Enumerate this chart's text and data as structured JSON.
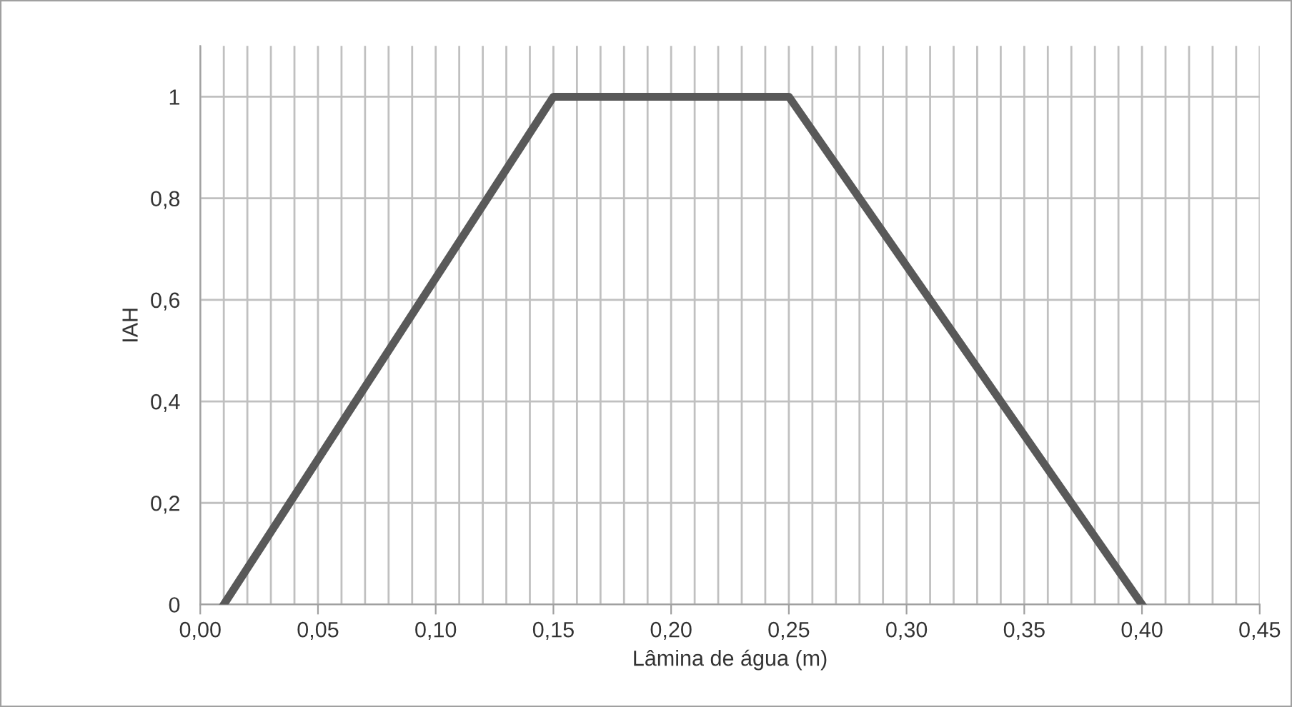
{
  "chart_data": {
    "type": "line",
    "xlabel": "Lâmina de água (m)",
    "ylabel": "IAH",
    "x": [
      0.01,
      0.15,
      0.25,
      0.4
    ],
    "series": [
      {
        "color": "#595959",
        "values": [
          0,
          1,
          1,
          0
        ]
      }
    ],
    "xlim": [
      0,
      0.45
    ],
    "ylim": [
      0,
      1.1
    ],
    "xticks": [
      {
        "value": 0,
        "label": "0,00"
      },
      {
        "value": 0.01,
        "label": null
      },
      {
        "value": 0.02,
        "label": null
      },
      {
        "value": 0.03,
        "label": null
      },
      {
        "value": 0.04,
        "label": null
      },
      {
        "value": 0.05,
        "label": "0,05"
      },
      {
        "value": 0.06,
        "label": null
      },
      {
        "value": 0.07,
        "label": null
      },
      {
        "value": 0.08,
        "label": null
      },
      {
        "value": 0.09,
        "label": null
      },
      {
        "value": 0.1,
        "label": "0,10"
      },
      {
        "value": 0.11,
        "label": null
      },
      {
        "value": 0.12,
        "label": null
      },
      {
        "value": 0.13,
        "label": null
      },
      {
        "value": 0.14,
        "label": null
      },
      {
        "value": 0.15,
        "label": "0,15"
      },
      {
        "value": 0.16,
        "label": null
      },
      {
        "value": 0.17,
        "label": null
      },
      {
        "value": 0.18,
        "label": null
      },
      {
        "value": 0.19,
        "label": null
      },
      {
        "value": 0.2,
        "label": "0,20"
      },
      {
        "value": 0.21,
        "label": null
      },
      {
        "value": 0.22,
        "label": null
      },
      {
        "value": 0.23,
        "label": null
      },
      {
        "value": 0.24,
        "label": null
      },
      {
        "value": 0.25,
        "label": "0,25"
      },
      {
        "value": 0.26,
        "label": null
      },
      {
        "value": 0.27,
        "label": null
      },
      {
        "value": 0.28,
        "label": null
      },
      {
        "value": 0.29,
        "label": null
      },
      {
        "value": 0.3,
        "label": "0,30"
      },
      {
        "value": 0.31,
        "label": null
      },
      {
        "value": 0.32,
        "label": null
      },
      {
        "value": 0.33,
        "label": null
      },
      {
        "value": 0.34,
        "label": null
      },
      {
        "value": 0.35,
        "label": "0,35"
      },
      {
        "value": 0.36,
        "label": null
      },
      {
        "value": 0.37,
        "label": null
      },
      {
        "value": 0.38,
        "label": null
      },
      {
        "value": 0.39,
        "label": null
      },
      {
        "value": 0.4,
        "label": "0,40"
      },
      {
        "value": 0.41,
        "label": null
      },
      {
        "value": 0.42,
        "label": null
      },
      {
        "value": 0.43,
        "label": null
      },
      {
        "value": 0.44,
        "label": null
      },
      {
        "value": 0.45,
        "label": "0,45"
      }
    ],
    "yticks": [
      0,
      {
        "value": 0.2,
        "label": "0,2"
      },
      {
        "value": 0.4,
        "label": "0,4"
      },
      {
        "value": 0.6,
        "label": "0,6"
      },
      {
        "value": 0.8,
        "label": "0,8"
      },
      1
    ],
    "grid": true,
    "legend": false,
    "marker": "none",
    "line_style": "solid"
  }
}
